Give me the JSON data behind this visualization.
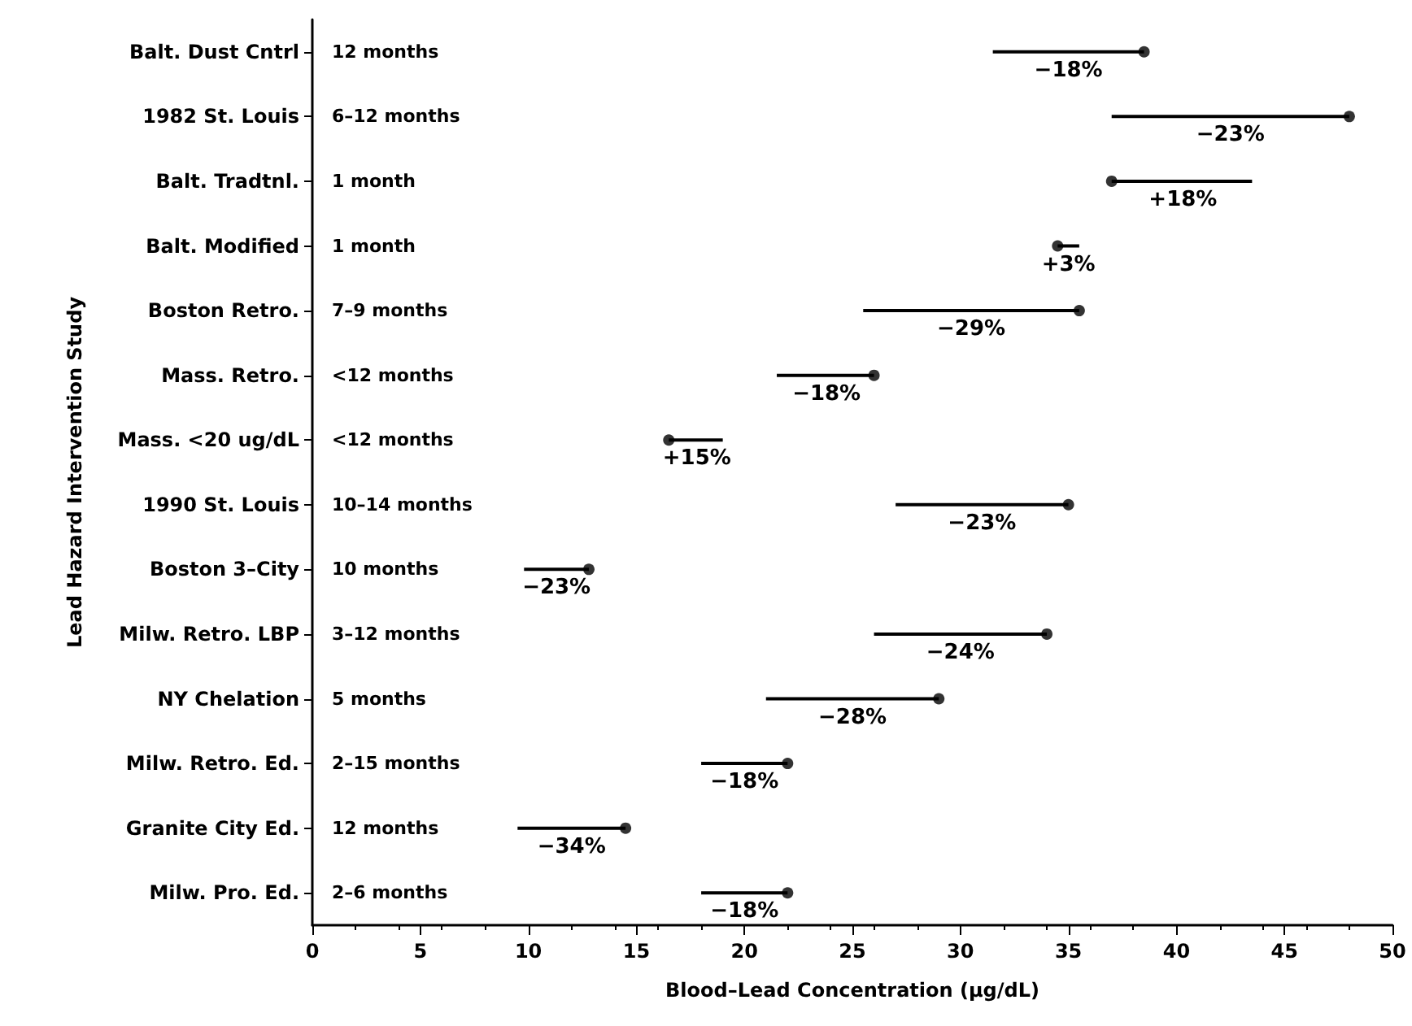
{
  "chart_data": {
    "type": "bar",
    "orientation": "horizontal",
    "xlabel": "Blood–Lead Concentration (μg/dL)",
    "ylabel": "Lead Hazard Intervention Study",
    "categories": [
      "Balt. Dust Cntrl",
      "1982 St. Louis",
      "Balt. Tradtnl.",
      "Balt. Modified",
      "Boston Retro.",
      "Mass. Retro.",
      "Mass. <20 ug/dL",
      "1990 St. Louis",
      "Boston 3–City",
      "Milw. Retro. LBP",
      "NY Chelation",
      "Milw. Retro. Ed.",
      "Granite City Ed.",
      "Milw. Pro. Ed."
    ],
    "series": [
      {
        "color": "#000000",
        "base": [
          38.5,
          48,
          37,
          34.5,
          35.5,
          26,
          16.5,
          35,
          12.8,
          34,
          29,
          22,
          14.5,
          22
        ],
        "values": [
          -7,
          -11,
          6.5,
          1,
          -10,
          -4.5,
          2.5,
          -8,
          -3,
          -8,
          -8,
          -4,
          -5,
          -4
        ]
      },
      {
        "type": "scatter",
        "color": "#000000",
        "marker": "circle",
        "values": [
          38.5,
          48,
          37,
          34.5,
          35.5,
          26,
          16.5,
          35,
          12.8,
          34,
          29,
          22,
          14.5,
          22
        ]
      }
    ],
    "grid": false,
    "xlim": [
      0,
      50
    ],
    "xticks": [
      0,
      5,
      10,
      15,
      20,
      25,
      30,
      35,
      40,
      45,
      50
    ],
    "annotations": [
      "12 months",
      "6–12 months",
      "1 month",
      "1 month",
      "7–9 months",
      "<12 months",
      "<12 months",
      "10–14 months",
      "10 months",
      "3–12 months",
      "5 months",
      "2–15 months",
      "12 months",
      "2–6 months",
      {
        "text": "−18%",
        "x": 35,
        "y": "Balt. Dust Cntrl"
      },
      {
        "text": "−23%",
        "x": 42.5,
        "y": "1982 St. Louis"
      },
      {
        "text": "+18%",
        "x": 40.3,
        "y": "Balt. Tradtnl."
      },
      {
        "text": "+3%",
        "x": 35,
        "y": "Balt. Modified"
      },
      {
        "text": "−29%",
        "x": 30.5,
        "y": "Boston Retro."
      },
      {
        "text": "−18%",
        "x": 23.8,
        "y": "Mass. Retro."
      },
      {
        "text": "+15%",
        "x": 17.8,
        "y": "Mass. <20 ug/dL"
      },
      {
        "text": "−23%",
        "x": 31,
        "y": "1990 St. Louis"
      },
      {
        "text": "−23%",
        "x": 11.3,
        "y": "Boston 3–City"
      },
      {
        "text": "−24%",
        "x": 30,
        "y": "Milw. Retro. LBP"
      },
      {
        "text": "−28%",
        "x": 25,
        "y": "NY Chelation"
      },
      {
        "text": "−18%",
        "x": 20,
        "y": "Milw. Retro. Ed."
      },
      {
        "text": "−34%",
        "x": 12,
        "y": "Granite City Ed."
      },
      {
        "text": "−18%",
        "x": 20,
        "y": "Milw. Pro. Ed."
      }
    ]
  }
}
